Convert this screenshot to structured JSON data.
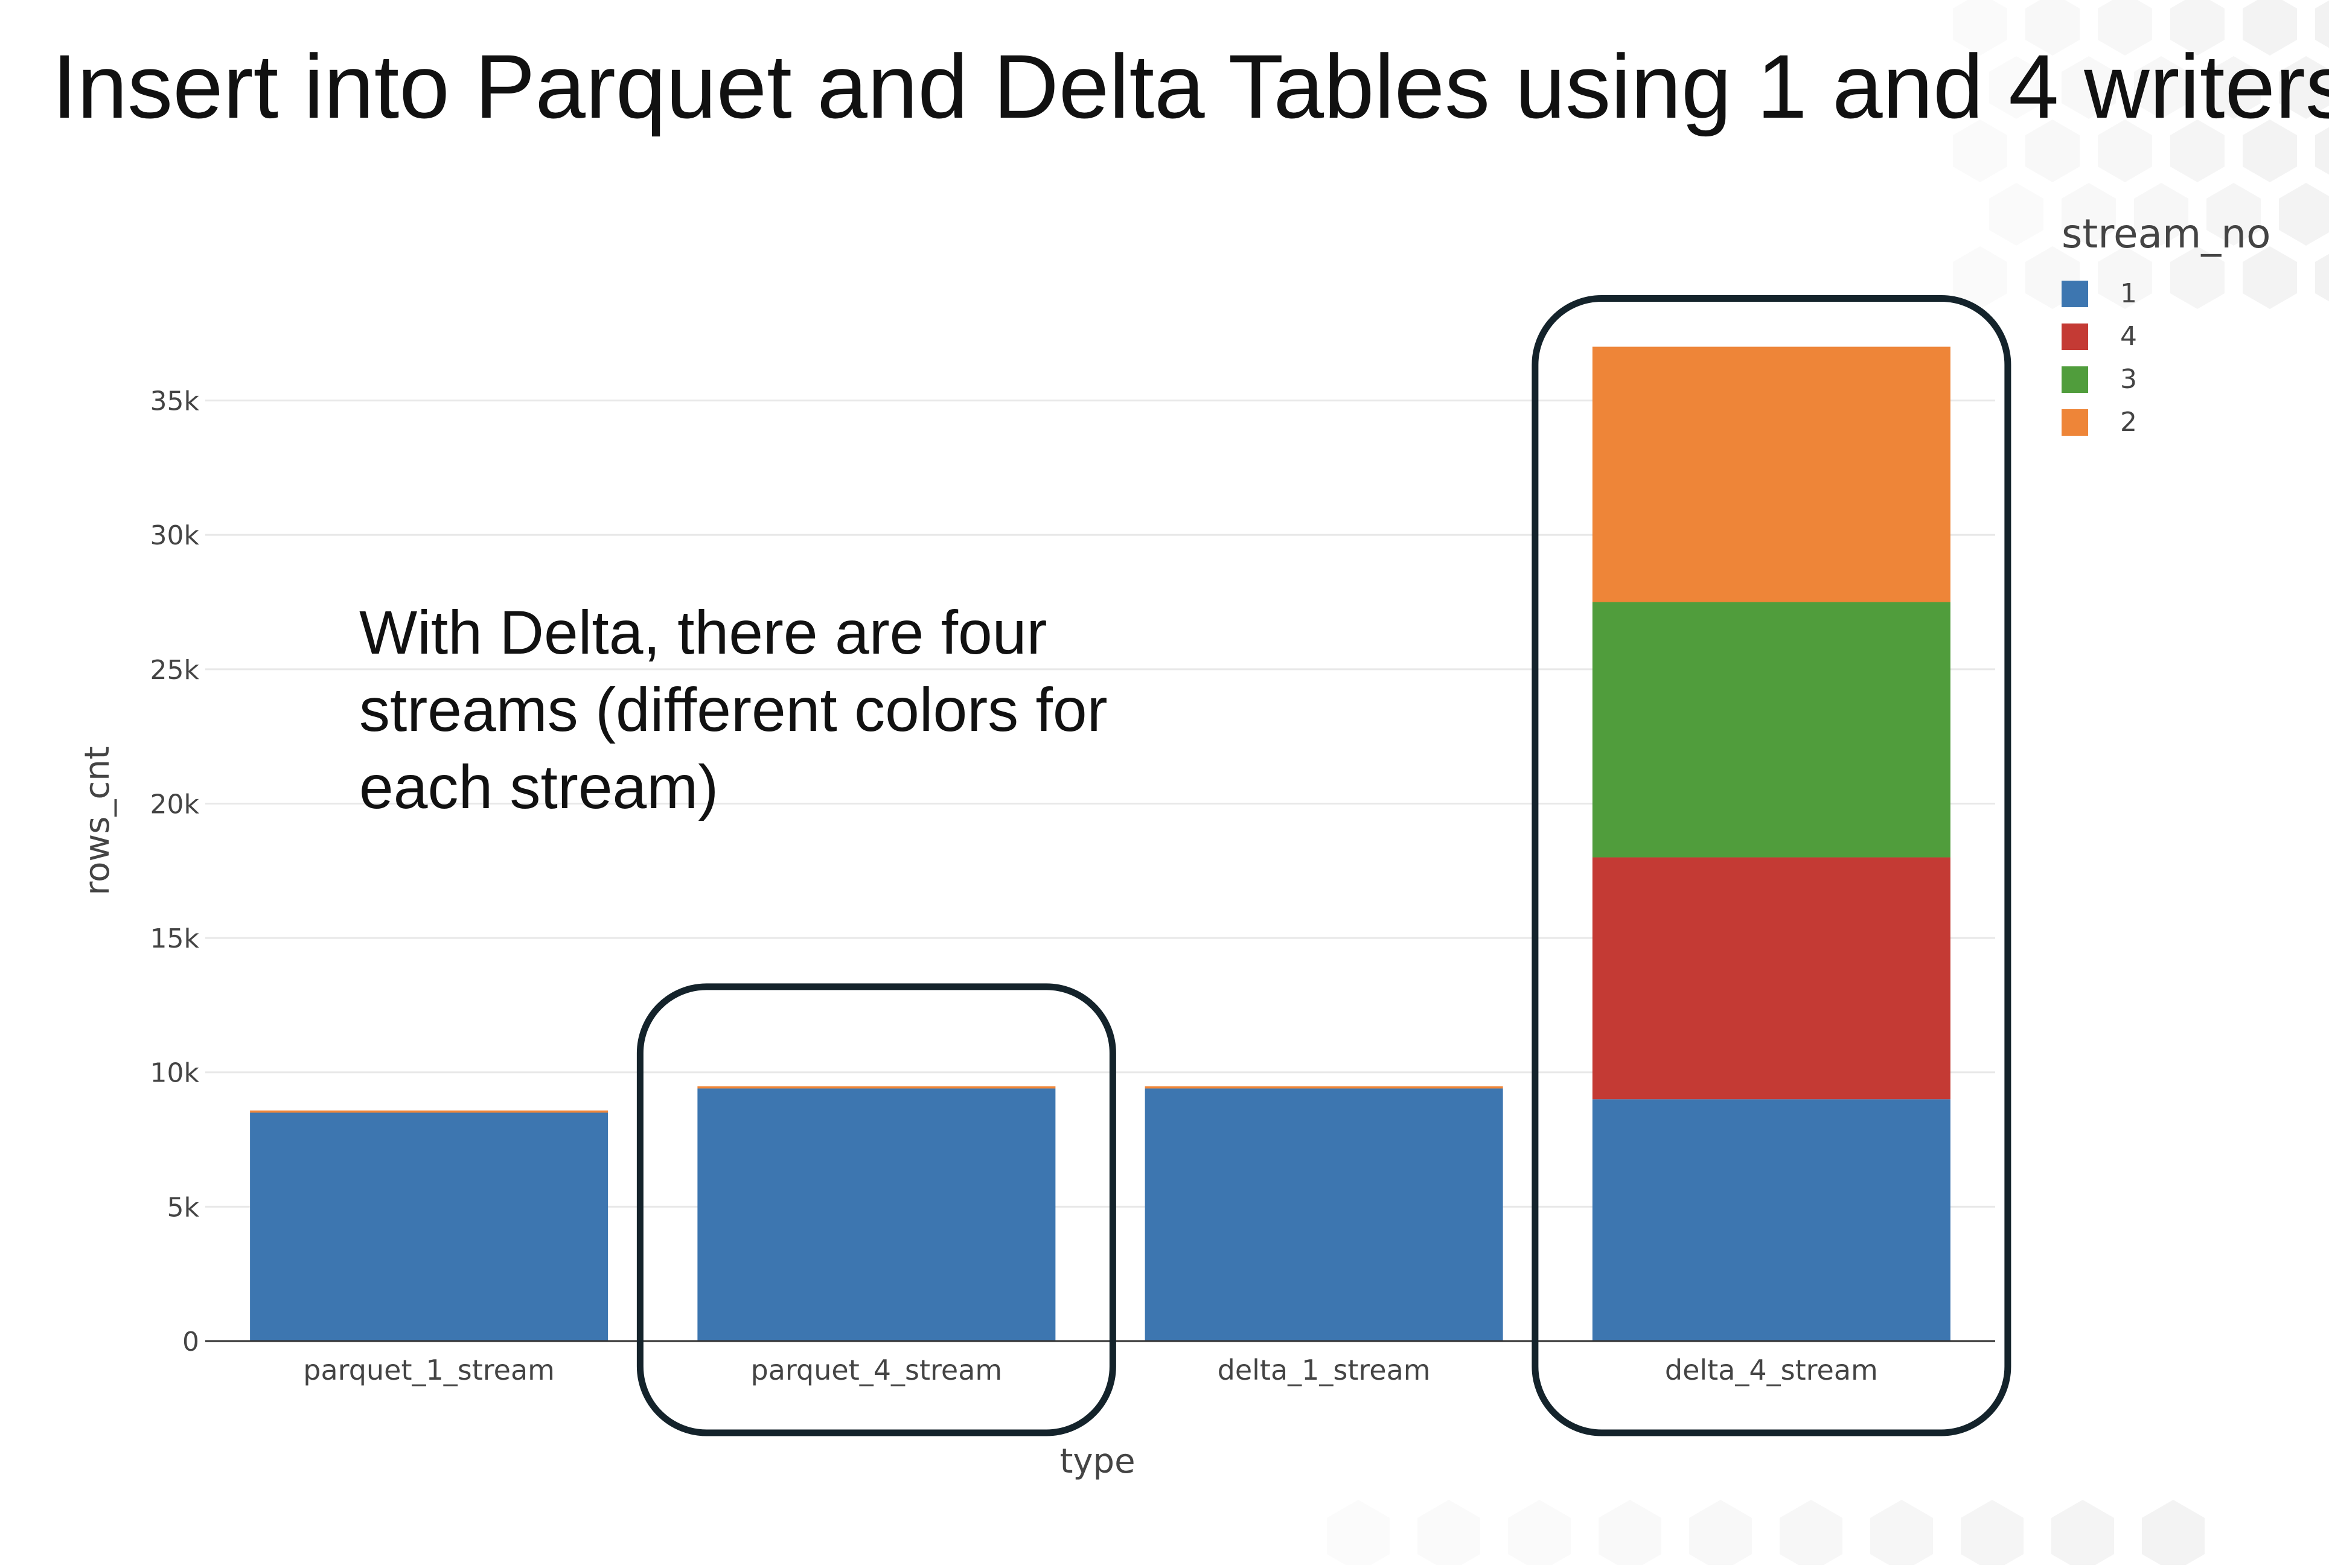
{
  "slide": {
    "title": "Insert into Parquet and Delta Tables using 1 and 4 writers",
    "annotation_lines": [
      "With Delta, there are four",
      "streams (different colors for",
      "each stream)"
    ]
  },
  "colors": {
    "stream_1": "#3d76b0",
    "stream_4": "#c43a34",
    "stream_3": "#509d3c",
    "stream_2": "#ee8538",
    "highlight_stroke": "#14232b",
    "grid": "#e8e8e8",
    "axis": "#333333"
  },
  "chart_data": {
    "type": "bar",
    "stacked": true,
    "xlabel": "type",
    "ylabel": "rows_cnt",
    "ylim": [
      0,
      38000
    ],
    "yticks": [
      {
        "value": 0,
        "label": "0"
      },
      {
        "value": 5000,
        "label": "5k"
      },
      {
        "value": 10000,
        "label": "10k"
      },
      {
        "value": 15000,
        "label": "15k"
      },
      {
        "value": 20000,
        "label": "20k"
      },
      {
        "value": 25000,
        "label": "25k"
      },
      {
        "value": 30000,
        "label": "30k"
      },
      {
        "value": 35000,
        "label": "35k"
      }
    ],
    "grid": true,
    "legend": {
      "title": "stream_no",
      "position": "top-right"
    },
    "categories": [
      "parquet_1_stream",
      "parquet_4_stream",
      "delta_1_stream",
      "delta_4_stream"
    ],
    "series": [
      {
        "name": "1",
        "color": "#3d76b0",
        "values": [
          8500,
          9400,
          9400,
          9000
        ]
      },
      {
        "name": "4",
        "color": "#c43a34",
        "values": [
          0,
          0,
          0,
          9000
        ]
      },
      {
        "name": "3",
        "color": "#509d3c",
        "values": [
          0,
          0,
          0,
          9500
        ]
      },
      {
        "name": "2",
        "color": "#ee8538",
        "values": [
          80,
          80,
          80,
          9500
        ]
      }
    ],
    "highlighted_categories": [
      "parquet_4_stream",
      "delta_4_stream"
    ]
  }
}
